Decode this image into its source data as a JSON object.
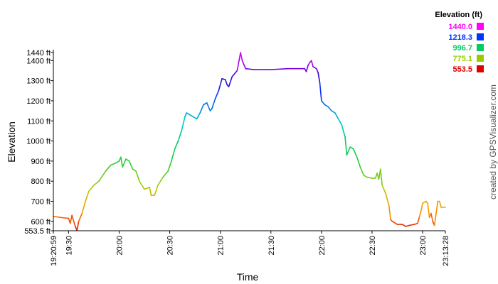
{
  "chart_data": {
    "type": "line",
    "xlabel": "Time",
    "ylabel": "Elevation",
    "xlim_minutes": [
      1160.98,
      1393.47
    ],
    "ylim": [
      553.5,
      1440
    ],
    "grid": false,
    "x_tick_labels": [
      "19:20:59",
      "19:30",
      "20:00",
      "20:30",
      "21:00",
      "21:30",
      "22:00",
      "22:30",
      "23:00",
      "23:13:28"
    ],
    "x_tick_minutes": [
      1160.98,
      1170,
      1200,
      1230,
      1260,
      1290,
      1320,
      1350,
      1380,
      1393.47
    ],
    "y_tick_labels": [
      "553.5 ft",
      "600 ft",
      "700 ft",
      "800 ft",
      "900 ft",
      "1000 ft",
      "1100 ft",
      "1200 ft",
      "1300 ft",
      "1400 ft",
      "1440 ft"
    ],
    "y_tick_values": [
      553.5,
      600,
      700,
      800,
      900,
      1000,
      1100,
      1200,
      1300,
      1400,
      1440
    ],
    "series": [
      {
        "points": [
          [
            1160.98,
            625
          ],
          [
            1165,
            620
          ],
          [
            1170,
            615
          ],
          [
            1171,
            590
          ],
          [
            1172,
            630
          ],
          [
            1174,
            575
          ],
          [
            1175,
            555
          ],
          [
            1176,
            600
          ],
          [
            1178,
            640
          ],
          [
            1180,
            700
          ],
          [
            1182,
            750
          ],
          [
            1185,
            780
          ],
          [
            1188,
            800
          ],
          [
            1192,
            850
          ],
          [
            1195,
            880
          ],
          [
            1198,
            890
          ],
          [
            1200,
            900
          ],
          [
            1201,
            920
          ],
          [
            1202,
            870
          ],
          [
            1204,
            910
          ],
          [
            1206,
            900
          ],
          [
            1208,
            860
          ],
          [
            1210,
            850
          ],
          [
            1212,
            800
          ],
          [
            1215,
            760
          ],
          [
            1218,
            770
          ],
          [
            1219,
            730
          ],
          [
            1221,
            730
          ],
          [
            1223,
            780
          ],
          [
            1226,
            820
          ],
          [
            1229,
            850
          ],
          [
            1231,
            900
          ],
          [
            1233,
            960
          ],
          [
            1235,
            1000
          ],
          [
            1237,
            1050
          ],
          [
            1239,
            1120
          ],
          [
            1240,
            1140
          ],
          [
            1242,
            1130
          ],
          [
            1244,
            1120
          ],
          [
            1246,
            1110
          ],
          [
            1248,
            1140
          ],
          [
            1250,
            1180
          ],
          [
            1252,
            1190
          ],
          [
            1254,
            1150
          ],
          [
            1255,
            1160
          ],
          [
            1257,
            1210
          ],
          [
            1259,
            1250
          ],
          [
            1261,
            1310
          ],
          [
            1263,
            1305
          ],
          [
            1264,
            1280
          ],
          [
            1265,
            1270
          ],
          [
            1267,
            1320
          ],
          [
            1270,
            1350
          ],
          [
            1272,
            1440
          ],
          [
            1273,
            1400
          ],
          [
            1275,
            1360
          ],
          [
            1280,
            1355
          ],
          [
            1290,
            1355
          ],
          [
            1300,
            1360
          ],
          [
            1310,
            1360
          ],
          [
            1311,
            1345
          ],
          [
            1312,
            1375
          ],
          [
            1313,
            1390
          ],
          [
            1314,
            1400
          ],
          [
            1315,
            1370
          ],
          [
            1317,
            1360
          ],
          [
            1318,
            1340
          ],
          [
            1319,
            1290
          ],
          [
            1320,
            1200
          ],
          [
            1322,
            1180
          ],
          [
            1324,
            1170
          ],
          [
            1326,
            1150
          ],
          [
            1328,
            1140
          ],
          [
            1330,
            1110
          ],
          [
            1332,
            1080
          ],
          [
            1334,
            1020
          ],
          [
            1335,
            930
          ],
          [
            1337,
            970
          ],
          [
            1339,
            960
          ],
          [
            1341,
            920
          ],
          [
            1343,
            870
          ],
          [
            1345,
            830
          ],
          [
            1347,
            820
          ],
          [
            1350,
            815
          ],
          [
            1352,
            815
          ],
          [
            1353,
            840
          ],
          [
            1354,
            810
          ],
          [
            1355,
            860
          ],
          [
            1356,
            780
          ],
          [
            1357,
            760
          ],
          [
            1358,
            740
          ],
          [
            1360,
            680
          ],
          [
            1361,
            610
          ],
          [
            1362,
            600
          ],
          [
            1365,
            585
          ],
          [
            1368,
            585
          ],
          [
            1370,
            575
          ],
          [
            1372,
            580
          ],
          [
            1375,
            585
          ],
          [
            1377,
            590
          ],
          [
            1378,
            620
          ],
          [
            1379,
            650
          ],
          [
            1380,
            690
          ],
          [
            1382,
            700
          ],
          [
            1383,
            690
          ],
          [
            1384,
            620
          ],
          [
            1385,
            640
          ],
          [
            1386,
            600
          ],
          [
            1387,
            580
          ],
          [
            1389,
            700
          ],
          [
            1390,
            700
          ],
          [
            1391,
            670
          ],
          [
            1393.47,
            670
          ]
        ]
      }
    ],
    "legend": {
      "title": "Elevation (ft)",
      "placement": "top-right",
      "entries": [
        {
          "label": "1440.0",
          "color": "#ff00ff"
        },
        {
          "label": "1218.3",
          "color": "#0033ff"
        },
        {
          "label": "996.7",
          "color": "#00cc66"
        },
        {
          "label": "775.1",
          "color": "#99cc00"
        },
        {
          "label": "553.5",
          "color": "#dd0000"
        }
      ]
    },
    "color_stops": [
      {
        "value": 553.5,
        "color": "#dd0000"
      },
      {
        "value": 650,
        "color": "#ff9900"
      },
      {
        "value": 775.1,
        "color": "#aacc00"
      },
      {
        "value": 880,
        "color": "#33cc33"
      },
      {
        "value": 996.7,
        "color": "#00cc66"
      },
      {
        "value": 1100,
        "color": "#00cccc"
      },
      {
        "value": 1218.3,
        "color": "#0044ff"
      },
      {
        "value": 1320,
        "color": "#3300cc"
      },
      {
        "value": 1440,
        "color": "#ff00ff"
      }
    ]
  },
  "credit": "created by GPSVisualizer.com"
}
